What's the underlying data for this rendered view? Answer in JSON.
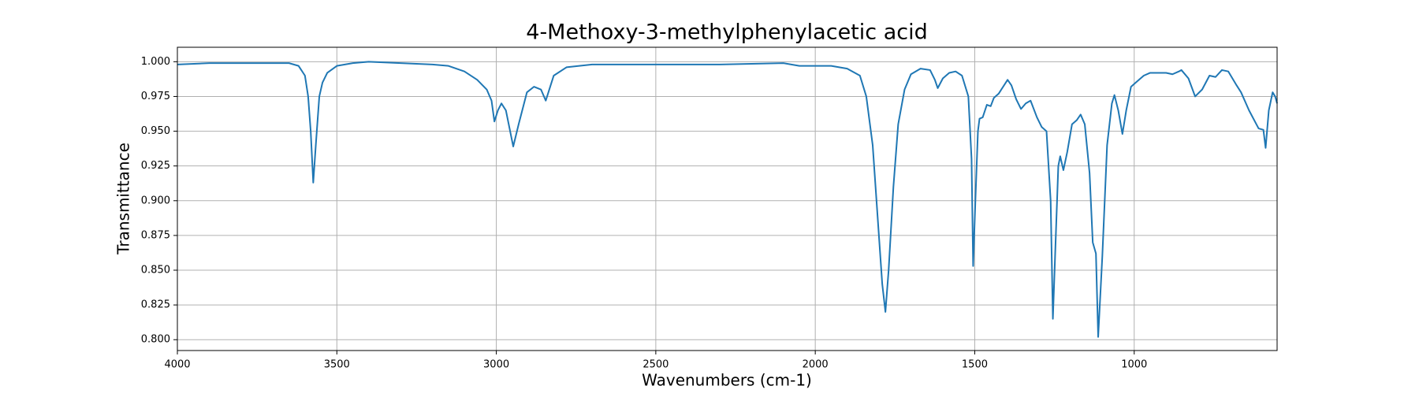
{
  "chart_data": {
    "type": "line",
    "title": "4-Methoxy-3-methylphenylacetic acid",
    "x_label": "Wavenumbers (cm-1)",
    "y_label": "Transmittance",
    "color": "#1f77b4",
    "grid": true,
    "x_reversed": true,
    "xlim": [
      4000,
      552
    ],
    "ylim": [
      0.7922,
      1.0104
    ],
    "xticks": [
      4000,
      3500,
      3000,
      2500,
      2000,
      1500,
      1000
    ],
    "yticks": [
      {
        "value": 0.8,
        "label": "0.800"
      },
      {
        "value": 0.825,
        "label": "0.825"
      },
      {
        "value": 0.85,
        "label": "0.850"
      },
      {
        "value": 0.875,
        "label": "0.875"
      },
      {
        "value": 0.9,
        "label": "0.900"
      },
      {
        "value": 0.925,
        "label": "0.925"
      },
      {
        "value": 0.95,
        "label": "0.950"
      },
      {
        "value": 0.975,
        "label": "0.975"
      },
      {
        "value": 1.0,
        "label": "1.000"
      }
    ],
    "x": [
      4000,
      3900,
      3800,
      3700,
      3650,
      3620,
      3600,
      3590,
      3582,
      3574,
      3566,
      3555,
      3545,
      3530,
      3500,
      3450,
      3400,
      3300,
      3200,
      3150,
      3100,
      3060,
      3030,
      3015,
      3006,
      2995,
      2984,
      2970,
      2947,
      2930,
      2904,
      2882,
      2860,
      2845,
      2820,
      2780,
      2700,
      2500,
      2300,
      2100,
      2050,
      2000,
      1950,
      1900,
      1860,
      1840,
      1820,
      1805,
      1790,
      1780,
      1770,
      1755,
      1740,
      1720,
      1700,
      1670,
      1640,
      1625,
      1616,
      1600,
      1580,
      1560,
      1540,
      1520,
      1510,
      1505,
      1498,
      1490,
      1485,
      1475,
      1462,
      1450,
      1440,
      1425,
      1397,
      1385,
      1370,
      1355,
      1340,
      1325,
      1305,
      1290,
      1275,
      1262,
      1255,
      1245,
      1238,
      1232,
      1222,
      1210,
      1195,
      1180,
      1168,
      1155,
      1140,
      1130,
      1120,
      1113,
      1100,
      1085,
      1070,
      1062,
      1050,
      1037,
      1025,
      1010,
      990,
      970,
      950,
      900,
      880,
      860,
      852,
      830,
      809,
      787,
      764,
      745,
      725,
      705,
      679,
      665,
      640,
      610,
      595,
      588,
      578,
      566,
      558,
      552
    ],
    "values": [
      0.998,
      0.999,
      0.999,
      0.999,
      0.999,
      0.997,
      0.99,
      0.975,
      0.95,
      0.913,
      0.94,
      0.975,
      0.985,
      0.992,
      0.997,
      0.999,
      1.0,
      0.999,
      0.998,
      0.997,
      0.993,
      0.987,
      0.98,
      0.972,
      0.957,
      0.965,
      0.97,
      0.965,
      0.939,
      0.955,
      0.978,
      0.982,
      0.98,
      0.972,
      0.99,
      0.996,
      0.998,
      0.998,
      0.998,
      0.999,
      0.997,
      0.997,
      0.997,
      0.995,
      0.99,
      0.975,
      0.94,
      0.89,
      0.84,
      0.82,
      0.85,
      0.91,
      0.955,
      0.98,
      0.991,
      0.995,
      0.994,
      0.987,
      0.981,
      0.988,
      0.992,
      0.993,
      0.99,
      0.975,
      0.93,
      0.853,
      0.9,
      0.95,
      0.959,
      0.96,
      0.969,
      0.968,
      0.974,
      0.977,
      0.987,
      0.983,
      0.973,
      0.966,
      0.97,
      0.972,
      0.96,
      0.953,
      0.95,
      0.9,
      0.815,
      0.88,
      0.925,
      0.932,
      0.922,
      0.935,
      0.955,
      0.958,
      0.962,
      0.955,
      0.92,
      0.87,
      0.862,
      0.802,
      0.86,
      0.94,
      0.97,
      0.976,
      0.965,
      0.948,
      0.965,
      0.982,
      0.986,
      0.99,
      0.992,
      0.992,
      0.991,
      0.993,
      0.994,
      0.988,
      0.975,
      0.98,
      0.99,
      0.989,
      0.994,
      0.993,
      0.983,
      0.978,
      0.965,
      0.952,
      0.951,
      0.938,
      0.965,
      0.978,
      0.975,
      0.97
    ]
  }
}
